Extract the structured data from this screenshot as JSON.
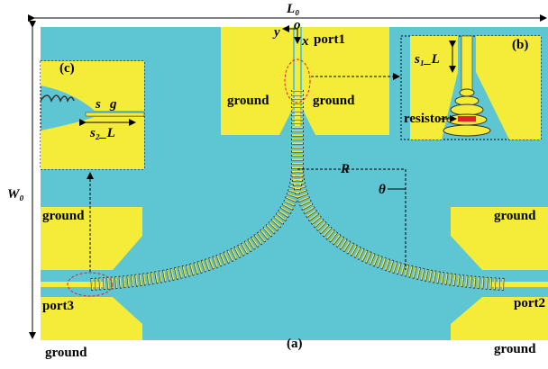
{
  "dimensions": {
    "length": "L₀",
    "width": "W₀",
    "radius": "R",
    "angle": "θ"
  },
  "axes": {
    "origin": "o",
    "x": "x",
    "y": "y"
  },
  "ports": [
    "port1",
    "port2",
    "port3"
  ],
  "grounds": [
    "ground",
    "ground",
    "ground",
    "ground",
    "ground",
    "ground"
  ],
  "panels": {
    "main": "(a)",
    "inset_b": "(b)",
    "inset_c": "(c)"
  },
  "inset_b": {
    "spacing": "s₁_L",
    "resistor": "resistor"
  },
  "inset_c": {
    "slot": "s",
    "gap": "g",
    "spacing": "s₂_L"
  }
}
